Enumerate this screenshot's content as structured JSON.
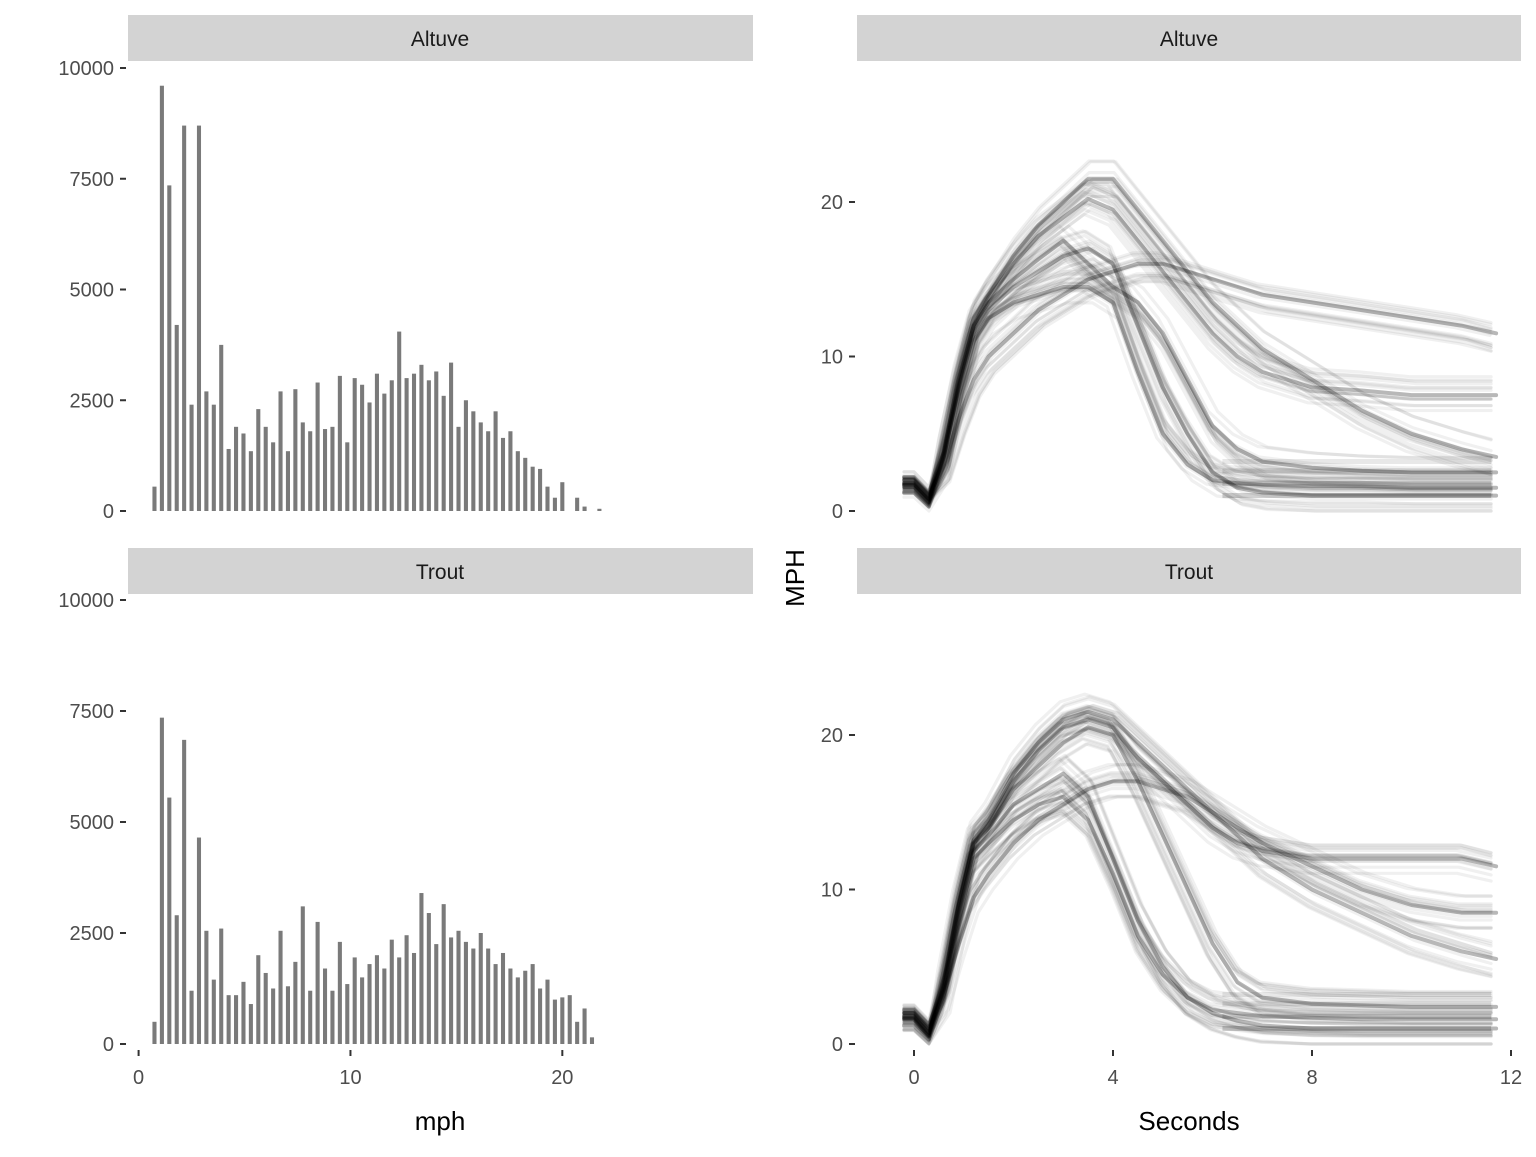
{
  "chart_data": [
    {
      "type": "bar",
      "panel": "histogram",
      "xlabel": "mph",
      "ylabel": "",
      "xlim": [
        -0.5,
        29
      ],
      "ylim": [
        0,
        10000
      ],
      "x_ticks": [
        0,
        10,
        20
      ],
      "y_ticks": [
        0,
        2500,
        5000,
        7500,
        10000
      ],
      "bar_color": "#7a7a7a",
      "strip_color": "#d3d3d3",
      "grid": false,
      "x": [
        0.75,
        1.1,
        1.45,
        1.8,
        2.15,
        2.5,
        2.85,
        3.2,
        3.55,
        3.9,
        4.25,
        4.6,
        4.95,
        5.3,
        5.65,
        6.0,
        6.35,
        6.7,
        7.05,
        7.4,
        7.75,
        8.1,
        8.45,
        8.8,
        9.15,
        9.5,
        9.85,
        10.2,
        10.55,
        10.9,
        11.25,
        11.6,
        11.95,
        12.3,
        12.65,
        13.0,
        13.35,
        13.7,
        14.05,
        14.4,
        14.75,
        15.1,
        15.45,
        15.8,
        16.15,
        16.5,
        16.85,
        17.2,
        17.55,
        17.9,
        18.25,
        18.6,
        18.95,
        19.3,
        19.65,
        20.0,
        20.35,
        20.7,
        21.05,
        21.4,
        21.75,
        22.1,
        22.45
      ],
      "series": [
        {
          "name": "Altuve",
          "values": [
            550,
            9600,
            7350,
            4200,
            8700,
            2400,
            8700,
            2700,
            2400,
            3750,
            1400,
            1900,
            1750,
            1350,
            2300,
            1900,
            1550,
            2700,
            1350,
            2750,
            2000,
            1800,
            2900,
            1850,
            1900,
            3050,
            1550,
            3000,
            2850,
            2450,
            3100,
            2650,
            2950,
            4050,
            3000,
            3100,
            3300,
            2950,
            3150,
            2600,
            3350,
            1900,
            2500,
            2250,
            2000,
            1800,
            2250,
            1650,
            1800,
            1350,
            1200,
            1000,
            950,
            550,
            300,
            650,
            0,
            300,
            100,
            0,
            50,
            0,
            0
          ]
        },
        {
          "name": "Trout",
          "values": [
            500,
            7350,
            5550,
            2900,
            6850,
            1200,
            4650,
            2550,
            1450,
            2600,
            1100,
            1100,
            1400,
            900,
            2000,
            1600,
            1250,
            2550,
            1300,
            1850,
            3100,
            1200,
            2750,
            1700,
            1200,
            2300,
            1350,
            1950,
            1500,
            1800,
            2000,
            1700,
            2350,
            1950,
            2450,
            2050,
            3400,
            2950,
            2250,
            3150,
            2400,
            2550,
            2300,
            2150,
            2500,
            2150,
            1800,
            2050,
            1700,
            1500,
            1650,
            1800,
            1250,
            1450,
            1000,
            1050,
            1100,
            500,
            800,
            150,
            0,
            0,
            0
          ]
        }
      ]
    },
    {
      "type": "line",
      "panel": "speed-vs-time",
      "xlabel": "Seconds",
      "ylabel": "MPH",
      "xlim": [
        -1,
        12
      ],
      "ylim": [
        0,
        27
      ],
      "x_ticks": [
        0,
        4,
        8,
        12
      ],
      "y_ticks": [
        0,
        10,
        20
      ],
      "line_color": "#000000",
      "strip_color": "#d3d3d3",
      "grid": false,
      "time": [
        -0.2,
        0.0,
        0.3,
        0.6,
        0.9,
        1.2,
        1.5,
        2.0,
        2.5,
        3.0,
        3.5,
        4.0,
        4.5,
        5.0,
        5.5,
        6.0,
        6.5,
        7.0,
        8.0,
        9.0,
        10.0,
        11.0,
        11.7
      ],
      "series": [
        {
          "name": "Altuve",
          "profiles": [
            [
              1.8,
              1.8,
              0.8,
              3.8,
              8.5,
              12.0,
              13.5,
              15.0,
              16.3,
              17.5,
              16.0,
              14.5,
              13.5,
              11.5,
              8.5,
              5.5,
              4.0,
              3.2,
              2.8,
              2.6,
              2.5,
              2.5,
              2.5
            ],
            [
              1.6,
              1.6,
              0.6,
              3.5,
              8.2,
              12.0,
              13.8,
              16.0,
              17.8,
              19.0,
              20.2,
              19.5,
              17.5,
              15.5,
              13.5,
              11.5,
              10.0,
              9.0,
              8.0,
              7.8,
              7.5,
              7.5,
              7.5
            ],
            [
              1.7,
              1.7,
              0.7,
              3.6,
              8.0,
              11.5,
              13.0,
              14.5,
              15.5,
              16.5,
              17.0,
              16.0,
              12.0,
              8.0,
              5.0,
              2.5,
              1.5,
              1.2,
              1.0,
              1.0,
              1.0,
              1.0,
              1.0
            ],
            [
              2.0,
              2.0,
              1.0,
              3.0,
              6.0,
              8.5,
              10.0,
              11.5,
              13.0,
              14.0,
              15.0,
              15.5,
              16.0,
              16.0,
              15.5,
              15.0,
              14.5,
              14.0,
              13.5,
              13.0,
              12.5,
              12.0,
              11.5
            ],
            [
              2.2,
              2.2,
              1.2,
              3.8,
              8.8,
              12.5,
              14.0,
              16.5,
              18.5,
              20.0,
              21.5,
              21.5,
              19.5,
              17.5,
              15.5,
              13.5,
              12.0,
              10.5,
              8.5,
              6.5,
              5.0,
              4.0,
              3.5
            ],
            [
              1.2,
              1.2,
              0.3,
              3.0,
              7.5,
              11.0,
              12.5,
              13.5,
              14.0,
              14.5,
              14.5,
              13.5,
              9.0,
              5.0,
              3.0,
              2.0,
              1.8,
              1.7,
              1.6,
              1.6,
              1.5,
              1.5,
              1.5
            ]
          ]
        },
        {
          "name": "Trout",
          "profiles": [
            [
              1.8,
              1.8,
              0.7,
              3.8,
              9.0,
              13.0,
              14.0,
              16.5,
              18.0,
              19.5,
              20.5,
              20.0,
              17.0,
              13.5,
              10.0,
              6.5,
              4.0,
              3.0,
              2.6,
              2.5,
              2.4,
              2.4,
              2.4
            ],
            [
              1.6,
              1.6,
              0.5,
              3.5,
              8.8,
              13.0,
              14.2,
              17.0,
              19.0,
              20.5,
              21.0,
              20.5,
              18.5,
              17.0,
              15.5,
              14.0,
              13.0,
              12.5,
              12.0,
              12.0,
              12.0,
              12.0,
              11.5
            ],
            [
              1.7,
              1.7,
              0.6,
              3.6,
              8.5,
              12.5,
              13.5,
              15.5,
              16.5,
              17.5,
              16.0,
              12.0,
              8.0,
              5.0,
              3.0,
              2.0,
              1.5,
              1.2,
              1.0,
              1.0,
              1.0,
              1.0,
              1.0
            ],
            [
              2.0,
              2.0,
              1.0,
              3.2,
              6.5,
              9.5,
              11.0,
              13.0,
              14.5,
              15.5,
              16.5,
              17.0,
              17.0,
              16.5,
              16.0,
              15.0,
              14.0,
              13.0,
              11.5,
              10.0,
              9.0,
              8.5,
              8.5
            ],
            [
              2.2,
              2.2,
              1.2,
              4.0,
              9.2,
              13.2,
              14.5,
              17.5,
              19.5,
              21.0,
              21.5,
              21.0,
              19.5,
              18.0,
              16.5,
              15.0,
              13.5,
              12.0,
              10.0,
              8.5,
              7.0,
              6.0,
              5.5
            ],
            [
              1.2,
              1.2,
              0.3,
              3.0,
              8.0,
              12.0,
              13.0,
              14.5,
              15.5,
              16.0,
              14.5,
              11.0,
              7.0,
              4.5,
              3.0,
              2.2,
              2.0,
              1.8,
              1.7,
              1.6,
              1.6,
              1.6,
              1.6
            ]
          ]
        }
      ]
    }
  ]
}
